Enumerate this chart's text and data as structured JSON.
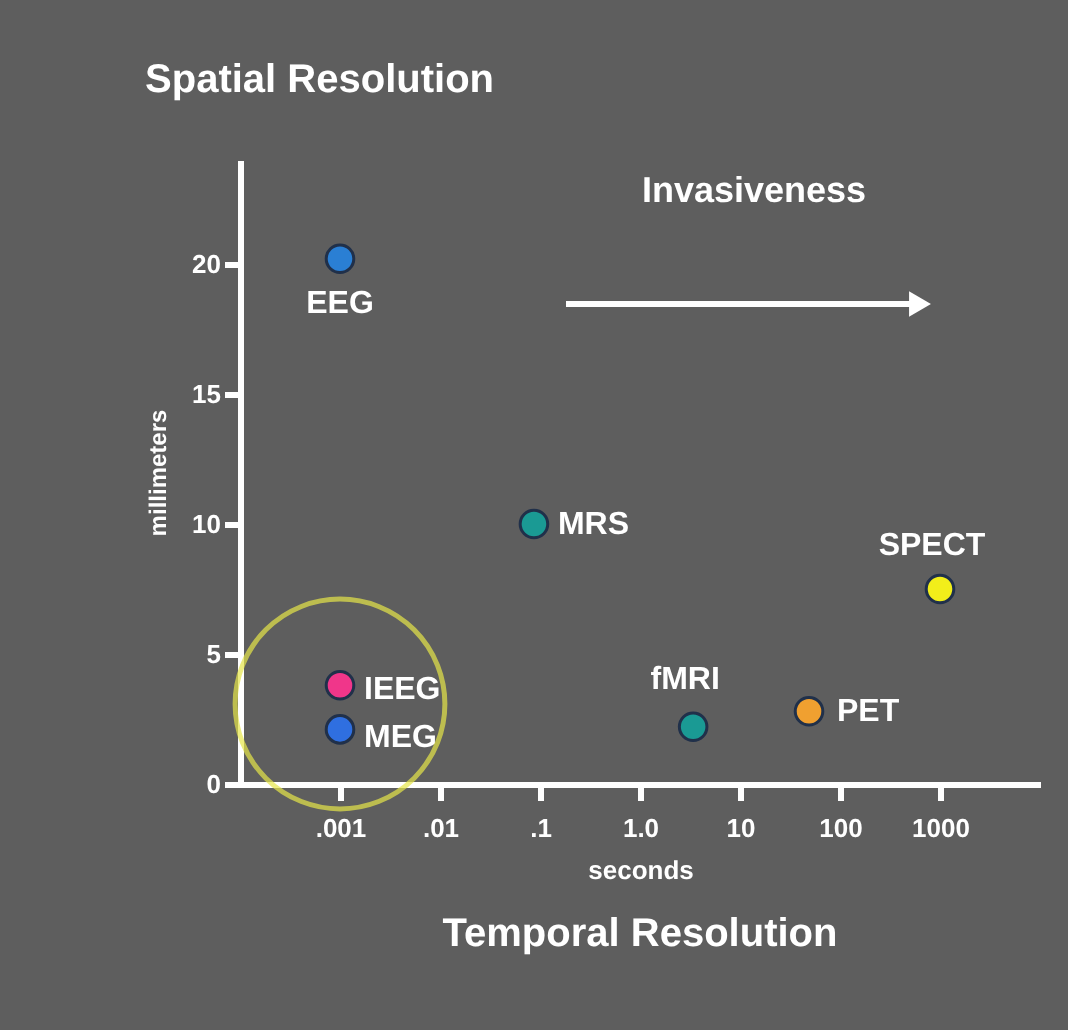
{
  "chart_data": {
    "type": "scatter",
    "title": "Spatial Resolution",
    "xlabel": "seconds",
    "ylabel": "millimeters",
    "legend_title": "Invasiveness",
    "annotations": [
      "Temporal Resolution"
    ],
    "log": "x",
    "xlim": [
      0.0001,
      10000
    ],
    "ylim": [
      0,
      24
    ],
    "xticks": [
      {
        "value": 0.001,
        "label": ".001"
      },
      {
        "value": 0.01,
        "label": ".01"
      },
      {
        "value": 0.1,
        "label": ".1"
      },
      {
        "value": 1,
        "label": "1.0"
      },
      {
        "value": 10,
        "label": "10"
      },
      {
        "value": 100,
        "label": "100"
      },
      {
        "value": 1000,
        "label": "1000"
      }
    ],
    "yticks": [
      0,
      5,
      10,
      15,
      20
    ],
    "grid": false,
    "marker": "circle",
    "series": [
      {
        "name": "EEG",
        "color": "#2a7fd4",
        "x": [
          0.001
        ],
        "values": [
          20.2
        ]
      },
      {
        "name": "MRS",
        "color": "#1a9a94",
        "x": [
          0.087
        ],
        "values": [
          10
        ]
      },
      {
        "name": "SPECT",
        "color": "#f2ee1a",
        "x": [
          1000
        ],
        "values": [
          7.5
        ]
      },
      {
        "name": "IEEG",
        "color": "#f0368a",
        "x": [
          0.001
        ],
        "values": [
          3.8
        ]
      },
      {
        "name": "MEG",
        "color": "#2f6fe0",
        "x": [
          0.001
        ],
        "values": [
          2.1
        ]
      },
      {
        "name": "fMRI",
        "color": "#1a9a94",
        "x": [
          3.4
        ],
        "values": [
          2.2
        ]
      },
      {
        "name": "PET",
        "color": "#f0a030",
        "x": [
          49
        ],
        "values": [
          2.8
        ]
      }
    ]
  }
}
